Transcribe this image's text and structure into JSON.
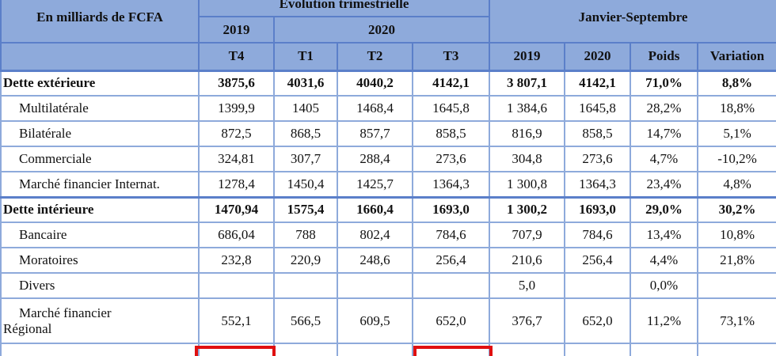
{
  "header": {
    "group_label": "Évolution trimestrielle",
    "row_label": "En milliards de FCFA",
    "period_label": "Janvier-Septembre",
    "year_2019": "2019",
    "year_2020": "2020",
    "columns": [
      "T4",
      "T1",
      "T2",
      "T3",
      "2019",
      "2020",
      "Poids",
      "Variation"
    ]
  },
  "rows": [
    {
      "label": "Dette extérieure",
      "bold": true,
      "cells": [
        "3875,6",
        "4031,6",
        "4040,2",
        "4142,1",
        "3 807,1",
        "4142,1",
        "71,0%",
        "8,8%"
      ]
    },
    {
      "label": "Multilatérale",
      "bold": false,
      "cells": [
        "1399,9",
        "1405",
        "1468,4",
        "1645,8",
        "1 384,6",
        "1645,8",
        "28,2%",
        "18,8%"
      ]
    },
    {
      "label": "Bilatérale",
      "bold": false,
      "cells": [
        "872,5",
        "868,5",
        "857,7",
        "858,5",
        "816,9",
        "858,5",
        "14,7%",
        "5,1%"
      ]
    },
    {
      "label": "Commerciale",
      "bold": false,
      "cells": [
        "324,81",
        "307,7",
        "288,4",
        "273,6",
        "304,8",
        "273,6",
        "4,7%",
        "-10,2%"
      ]
    },
    {
      "label": "Marché financier Internat.",
      "bold": false,
      "cells": [
        "1278,4",
        "1450,4",
        "1425,7",
        "1364,3",
        "1 300,8",
        "1364,3",
        "23,4%",
        "4,8%"
      ]
    },
    {
      "label": "Dette intérieure",
      "bold": true,
      "cells": [
        "1470,94",
        "1575,4",
        "1660,4",
        "1693,0",
        "1 300,2",
        "1693,0",
        "29,0%",
        "30,2%"
      ]
    },
    {
      "label": "Bancaire",
      "bold": false,
      "cells": [
        "686,04",
        "788",
        "802,4",
        "784,6",
        "707,9",
        "784,6",
        "13,4%",
        "10,8%"
      ]
    },
    {
      "label": "Moratoires",
      "bold": false,
      "cells": [
        "232,8",
        "220,9",
        "248,6",
        "256,4",
        "210,6",
        "256,4",
        "4,4%",
        "21,8%"
      ]
    },
    {
      "label": "Divers",
      "bold": false,
      "cells": [
        null,
        null,
        null,
        null,
        "5,0",
        null,
        "0,0%",
        null
      ]
    },
    {
      "label": "Marché financier\nRégional",
      "bold": false,
      "cells": [
        "552,1",
        "566,5",
        "609,5",
        "652,0",
        "376,7",
        "652,0",
        "11,2%",
        "73,1%"
      ]
    }
  ]
}
